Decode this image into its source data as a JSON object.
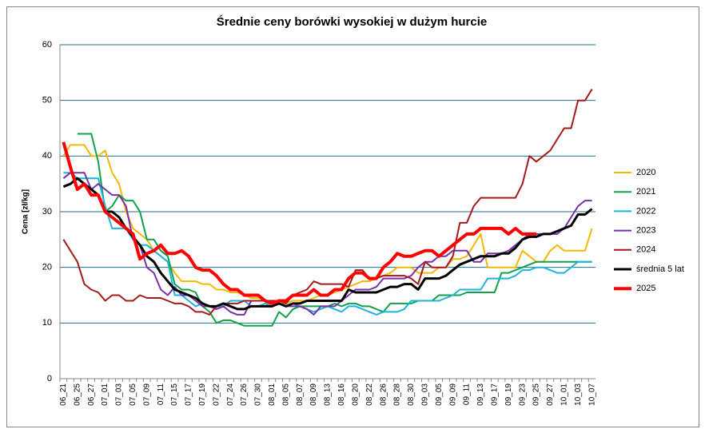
{
  "chart_data": {
    "type": "line",
    "title": "Średnie ceny borówki wysokiej w dużym hurcie",
    "y_label": "Cena [zł/kg]",
    "categories": [
      "06_21",
      null,
      "06_25",
      null,
      "06_27",
      null,
      "07_01",
      null,
      "07_03",
      null,
      "07_05",
      null,
      "07_09",
      null,
      "07_11",
      null,
      "07_15",
      null,
      "07_17",
      null,
      "07_19",
      null,
      "07_22",
      null,
      "07_24",
      null,
      "07_26",
      null,
      "07_30",
      null,
      "08_01",
      null,
      "08_05",
      null,
      "08_07",
      null,
      "08_09",
      null,
      "08_13",
      null,
      "08_16",
      null,
      "08_20",
      null,
      "08_22",
      null,
      "08_26",
      null,
      "08_28",
      null,
      "08_30",
      null,
      "09_03",
      null,
      "09_05",
      null,
      "09_09",
      null,
      "09_11",
      null,
      "09_13",
      null,
      "09_17",
      null,
      "09_19",
      null,
      "09_23",
      null,
      "09_25",
      null,
      "09_27",
      null,
      "10_01",
      null,
      "10_03",
      null,
      "10_07"
    ],
    "ylim": [
      0,
      60
    ],
    "yticks": [
      0,
      10,
      20,
      30,
      40,
      50,
      60
    ],
    "grid": true,
    "legend": "right",
    "series": [
      {
        "name": "2020",
        "color": "#f5b800",
        "width": 2,
        "values": [
          40,
          42,
          42,
          42,
          40,
          40,
          41,
          37,
          35,
          30,
          27,
          26,
          25,
          23,
          22,
          21,
          19,
          17.5,
          17.5,
          17.5,
          17,
          17,
          16,
          16,
          15.5,
          15.5,
          15,
          14.5,
          14.5,
          14,
          14,
          13.5,
          13.5,
          14,
          14,
          14,
          14.5,
          15,
          15,
          15.5,
          16,
          16.5,
          17,
          17.5,
          17.5,
          18,
          18.5,
          19,
          20,
          20,
          20,
          19,
          19,
          19,
          20,
          20,
          21.5,
          21.5,
          22,
          24,
          26,
          20,
          20,
          20,
          20,
          20,
          23,
          22,
          21,
          21,
          23,
          24,
          23,
          23,
          23,
          23,
          27
        ]
      },
      {
        "name": "2021",
        "color": "#12a04a",
        "width": 2,
        "values": [
          null,
          null,
          44,
          44,
          44,
          39,
          30,
          31,
          33,
          32,
          32,
          30,
          25,
          25,
          23,
          22,
          17,
          16,
          16,
          15.5,
          13,
          12,
          10,
          10.5,
          10.5,
          10,
          9.5,
          9.5,
          9.5,
          9.5,
          9.5,
          12,
          11,
          12.5,
          13,
          13,
          13,
          13,
          13,
          13.5,
          13,
          13.5,
          13.5,
          13,
          13,
          12.5,
          12,
          13.5,
          13.5,
          13.5,
          13.5,
          14,
          14,
          14,
          15,
          15,
          15,
          15,
          15.5,
          15.5,
          15.5,
          15.5,
          15.5,
          19,
          19,
          19.5,
          20,
          20.5,
          21,
          21,
          21,
          21,
          21,
          21,
          21,
          21,
          21
        ]
      },
      {
        "name": "2022",
        "color": "#1ab4dc",
        "width": 2,
        "values": [
          37,
          37,
          36,
          36,
          36,
          36,
          31,
          27,
          27,
          27,
          25,
          24,
          24,
          23,
          22,
          21,
          15,
          15,
          14,
          13,
          13.5,
          13,
          13,
          13,
          14,
          14,
          14,
          13,
          13,
          13.5,
          13,
          13.5,
          13,
          13.5,
          13,
          12.5,
          12,
          12.5,
          13,
          12.5,
          12,
          13,
          13,
          12.5,
          12,
          11.5,
          12,
          12,
          12,
          12.5,
          14,
          14,
          14,
          14,
          14,
          14.5,
          15,
          16,
          16,
          16,
          16,
          18,
          18,
          18,
          18,
          18.5,
          19.5,
          19.5,
          20,
          20,
          19.5,
          19,
          19,
          20,
          21,
          21,
          21
        ]
      },
      {
        "name": "2023",
        "color": "#7a30a8",
        "width": 2,
        "values": [
          36,
          37,
          37,
          37,
          34,
          35,
          34,
          33,
          33,
          31,
          25,
          24,
          20,
          19,
          16,
          15,
          16.5,
          15,
          15,
          14,
          13,
          13,
          12.5,
          13,
          12,
          11.5,
          11.5,
          14,
          14,
          14,
          14,
          13.5,
          13,
          13,
          13,
          12.5,
          11.5,
          13,
          13,
          13,
          14,
          15,
          16,
          16,
          16,
          16.5,
          18,
          18,
          18,
          18,
          18.5,
          20,
          21,
          21,
          22,
          22,
          23,
          23,
          23,
          21,
          21,
          22.5,
          22.5,
          22.5,
          23,
          24,
          25,
          26,
          26,
          26,
          26,
          26,
          27,
          29,
          31,
          32,
          32
        ]
      },
      {
        "name": "2024",
        "color": "#a31a1a",
        "width": 2,
        "values": [
          25,
          23,
          21,
          17,
          16,
          15.5,
          14,
          15,
          15,
          14,
          14,
          15,
          14.5,
          14.5,
          14.5,
          14,
          13.5,
          13.5,
          13,
          12,
          12,
          11.5,
          13,
          13.5,
          13.5,
          13.5,
          14,
          14,
          14,
          14,
          14,
          14,
          13.5,
          15,
          15.5,
          16,
          17.5,
          17,
          17,
          17,
          17,
          16.5,
          19.5,
          19.5,
          18,
          18,
          18.5,
          18.5,
          18.5,
          18.5,
          18,
          17,
          21,
          20,
          20,
          20,
          22,
          28,
          28,
          31,
          32.5,
          32.5,
          32.5,
          32.5,
          32.5,
          32.5,
          35,
          40,
          39,
          40,
          41,
          43,
          45,
          45,
          50,
          50,
          52
        ]
      },
      {
        "name": "średnia 5 lat",
        "color": "#000000",
        "width": 3,
        "values": [
          34.5,
          35,
          36,
          35,
          34,
          33,
          30,
          30,
          29,
          27,
          25.5,
          24,
          22,
          21,
          19,
          17.5,
          16,
          15.5,
          15,
          14.5,
          13.5,
          13,
          13,
          13.5,
          13,
          12.5,
          12.5,
          13,
          13,
          13,
          13,
          13.5,
          13,
          13.5,
          13.5,
          14,
          14,
          14,
          14,
          14,
          14,
          16,
          15.5,
          15.5,
          15.5,
          15.5,
          16,
          16.5,
          16.5,
          17,
          17,
          16,
          18,
          18,
          18,
          18.5,
          19.5,
          20.5,
          21,
          21.5,
          22,
          22,
          22,
          22.5,
          22.5,
          23.5,
          25,
          25.5,
          25.5,
          26,
          26,
          26.5,
          27,
          27.5,
          29.5,
          29.5,
          30.5
        ]
      },
      {
        "name": "2025",
        "color": "#ff0000",
        "width": 4,
        "values": [
          42.5,
          38,
          34,
          35,
          33,
          33,
          30,
          29,
          28,
          27,
          26,
          21.5,
          22.5,
          23,
          24,
          22.5,
          22.5,
          23,
          22,
          20,
          19.5,
          19.5,
          18.5,
          17,
          16,
          16,
          15,
          15,
          15,
          14,
          13.5,
          14,
          14,
          15,
          15,
          15,
          16,
          15,
          15,
          16,
          16,
          18,
          19,
          19,
          18,
          18,
          20,
          21,
          22.5,
          22,
          22,
          22.5,
          23,
          23,
          22,
          23,
          24,
          25,
          26,
          26,
          27,
          27,
          27,
          27,
          26,
          27,
          26,
          26,
          26,
          null,
          null,
          null,
          null,
          null,
          null,
          null,
          null
        ]
      }
    ]
  }
}
